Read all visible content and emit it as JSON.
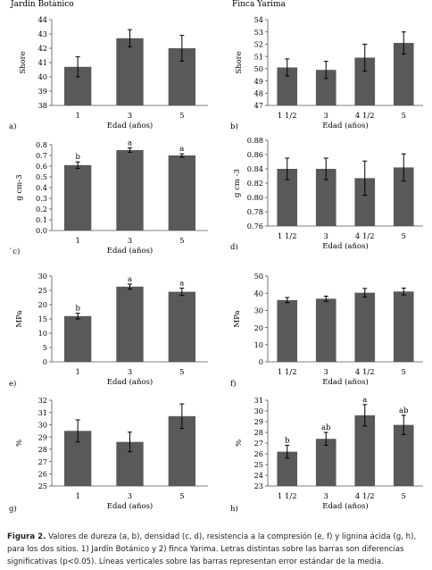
{
  "figure": {
    "caption_label": "Figura 2.",
    "caption_text": " Valores de dureza (a, b), densidad (c, d), resistencia a la compresión (e, f) y lignina ácida (g, h), para los dos sitios. 1) Jardín Botánico y 2) finca Yarima. Letras distintas sobre las barras son diferencias significativas (p<0.05). Líneas verticales sobre las barras representan error estándar de la media."
  },
  "chart_data": [
    {
      "id": "a",
      "type": "bar",
      "title": "Jardín Botánico",
      "panel_label": "a)",
      "ylabel": "Shore",
      "xlabel": "Edad (años)",
      "ylim": [
        38,
        44
      ],
      "yticks": [
        38,
        39,
        40,
        41,
        42,
        43,
        44
      ],
      "tick_decimals": 0,
      "categories": [
        "1",
        "3",
        "5"
      ],
      "values": [
        40.7,
        42.7,
        42.0
      ],
      "errors": [
        0.7,
        0.6,
        0.9
      ],
      "letters": [
        "",
        "",
        ""
      ]
    },
    {
      "id": "b",
      "type": "bar",
      "title": "Finca Yarima",
      "panel_label": "b)",
      "ylabel": "Shore",
      "xlabel": "Edad (años)",
      "ylim": [
        47,
        54
      ],
      "yticks": [
        47,
        48,
        49,
        50,
        51,
        52,
        53,
        54
      ],
      "tick_decimals": 0,
      "categories": [
        "1 1/2",
        "3",
        "4 1/2",
        "5"
      ],
      "values": [
        50.1,
        49.9,
        50.9,
        52.1
      ],
      "errors": [
        0.7,
        0.7,
        1.1,
        0.9
      ],
      "letters": [
        "",
        "",
        "",
        ""
      ]
    },
    {
      "id": "c",
      "type": "bar",
      "title": "",
      "panel_label": "`c)",
      "ylabel": "g cm-3",
      "xlabel": "Edad (años)",
      "ylim": [
        0,
        0.8
      ],
      "yticks": [
        0,
        0.1,
        0.2,
        0.3,
        0.4,
        0.5,
        0.6,
        0.7,
        0.8
      ],
      "tick_decimals": 1,
      "categories": [
        "1",
        "3",
        "5"
      ],
      "values": [
        0.61,
        0.75,
        0.7
      ],
      "errors": [
        0.03,
        0.02,
        0.015
      ],
      "letters": [
        "b",
        "a",
        "a"
      ]
    },
    {
      "id": "d",
      "type": "bar",
      "title": "",
      "panel_label": "d)",
      "ylabel": "g cm -3",
      "xlabel": "Edad (años)",
      "ylim": [
        0.76,
        0.88
      ],
      "yticks": [
        0.76,
        0.78,
        0.8,
        0.82,
        0.84,
        0.86,
        0.88
      ],
      "tick_decimals": 2,
      "categories": [
        "1 1/2",
        "3",
        "4 1/2",
        "5"
      ],
      "values": [
        0.84,
        0.84,
        0.827,
        0.842
      ],
      "errors": [
        0.015,
        0.015,
        0.024,
        0.019
      ],
      "letters": [
        "",
        "",
        "",
        ""
      ]
    },
    {
      "id": "e",
      "type": "bar",
      "title": "",
      "panel_label": "e)",
      "ylabel": "MPa",
      "xlabel": "Edad (años)",
      "ylim": [
        0,
        30
      ],
      "yticks": [
        0,
        5,
        10,
        15,
        20,
        25,
        30
      ],
      "tick_decimals": 0,
      "categories": [
        "1",
        "3",
        "5"
      ],
      "values": [
        16.0,
        26.3,
        24.5
      ],
      "errors": [
        1.0,
        0.9,
        1.3
      ],
      "letters": [
        "b",
        "a",
        "a"
      ]
    },
    {
      "id": "f",
      "type": "bar",
      "title": "",
      "panel_label": "f)",
      "ylabel": "MPa",
      "xlabel": "Edad (años)",
      "ylim": [
        0,
        50
      ],
      "yticks": [
        0,
        10,
        20,
        30,
        40,
        50
      ],
      "tick_decimals": 0,
      "categories": [
        "1 1/2",
        "3",
        "4 1/2",
        "5"
      ],
      "values": [
        36.0,
        36.8,
        40.3,
        41.0
      ],
      "errors": [
        1.5,
        1.5,
        2.5,
        2.0
      ],
      "letters": [
        "",
        "",
        "",
        ""
      ]
    },
    {
      "id": "g",
      "type": "bar",
      "title": "",
      "panel_label": "g)",
      "ylabel": "%",
      "xlabel": "Edad (años)",
      "ylim": [
        25,
        32
      ],
      "yticks": [
        25,
        26,
        27,
        28,
        29,
        30,
        31,
        32
      ],
      "tick_decimals": 0,
      "categories": [
        "1",
        "3",
        "5"
      ],
      "values": [
        29.5,
        28.6,
        30.7
      ],
      "errors": [
        0.9,
        0.8,
        1.0
      ],
      "letters": [
        "",
        "",
        ""
      ]
    },
    {
      "id": "h",
      "type": "bar",
      "title": "",
      "panel_label": "h)",
      "ylabel": "%",
      "xlabel": "Edad (años)",
      "ylim": [
        23,
        31
      ],
      "yticks": [
        23,
        24,
        25,
        26,
        27,
        28,
        29,
        30,
        31
      ],
      "tick_decimals": 0,
      "categories": [
        "1 1/2",
        "3",
        "4 1/2",
        "5"
      ],
      "values": [
        26.2,
        27.4,
        29.6,
        28.7
      ],
      "errors": [
        0.6,
        0.6,
        1.0,
        0.9
      ],
      "letters": [
        "b",
        "ab",
        "a",
        "ab"
      ]
    }
  ]
}
